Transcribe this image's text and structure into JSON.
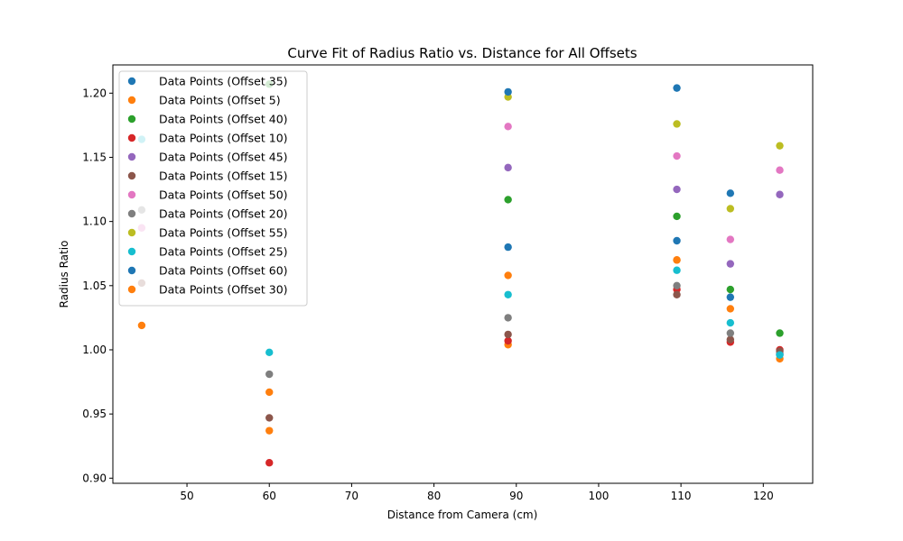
{
  "chart_data": {
    "type": "scatter",
    "title": "Curve Fit of Radius Ratio vs. Distance for All Offsets",
    "xlabel": "Distance from Camera (cm)",
    "ylabel": "Radius Ratio",
    "xlim": [
      41,
      126
    ],
    "ylim": [
      0.896,
      1.222
    ],
    "xticks": [
      50,
      60,
      70,
      80,
      90,
      100,
      110,
      120
    ],
    "yticks": [
      0.9,
      0.95,
      1.0,
      1.05,
      1.1,
      1.15,
      1.2
    ],
    "grid": false,
    "legend_position": "top-left",
    "series": [
      {
        "name": "Data Points (Offset 35)",
        "color": "#1f77b4",
        "x": [
          89,
          109.5,
          116,
          122
        ],
        "y": [
          1.08,
          1.085,
          1.041,
          0.997
        ]
      },
      {
        "name": "Data Points (Offset 5)",
        "color": "#ff7f0e",
        "x": [
          44.5,
          60,
          89,
          109.5,
          116,
          122
        ],
        "y": [
          1.019,
          0.937,
          1.004,
          1.07,
          1.032,
          0.993
        ]
      },
      {
        "name": "Data Points (Offset 40)",
        "color": "#2ca02c",
        "x": [
          60,
          89,
          109.5,
          116,
          122
        ],
        "y": [
          1.207,
          1.117,
          1.104,
          1.047,
          1.013
        ]
      },
      {
        "name": "Data Points (Offset 10)",
        "color": "#d62728",
        "x": [
          60,
          89,
          109.5,
          116,
          122
        ],
        "y": [
          0.912,
          1.007,
          1.047,
          1.006,
          1.0
        ]
      },
      {
        "name": "Data Points (Offset 45)",
        "color": "#9467bd",
        "x": [
          89,
          109.5,
          116,
          122
        ],
        "y": [
          1.142,
          1.125,
          1.067,
          1.121
        ]
      },
      {
        "name": "Data Points (Offset 15)",
        "color": "#8c564b",
        "x": [
          44.5,
          60,
          89,
          109.5,
          116,
          122
        ],
        "y": [
          1.052,
          0.947,
          1.012,
          1.043,
          1.008,
          0.999
        ]
      },
      {
        "name": "Data Points (Offset 50)",
        "color": "#e377c2",
        "x": [
          44.5,
          89,
          109.5,
          116,
          122
        ],
        "y": [
          1.095,
          1.174,
          1.151,
          1.086,
          1.14
        ]
      },
      {
        "name": "Data Points (Offset 20)",
        "color": "#7f7f7f",
        "x": [
          44.5,
          60,
          89,
          109.5,
          116,
          122
        ],
        "y": [
          1.109,
          0.981,
          1.025,
          1.05,
          1.013,
          0.996
        ]
      },
      {
        "name": "Data Points (Offset 55)",
        "color": "#bcbd22",
        "x": [
          89,
          109.5,
          116,
          122
        ],
        "y": [
          1.197,
          1.176,
          1.11,
          1.159
        ]
      },
      {
        "name": "Data Points (Offset 25)",
        "color": "#17becf",
        "x": [
          44.5,
          60,
          89,
          109.5,
          116,
          122
        ],
        "y": [
          1.164,
          0.998,
          1.043,
          1.062,
          1.021,
          0.996
        ]
      },
      {
        "name": "Data Points (Offset 60)",
        "color": "#1f77b4",
        "x": [
          89,
          109.5,
          116
        ],
        "y": [
          1.201,
          1.204,
          1.122
        ]
      },
      {
        "name": "Data Points (Offset 30)",
        "color": "#ff7f0e",
        "x": [
          60,
          89,
          109.5
        ],
        "y": [
          0.967,
          1.058,
          1.07
        ]
      }
    ]
  }
}
